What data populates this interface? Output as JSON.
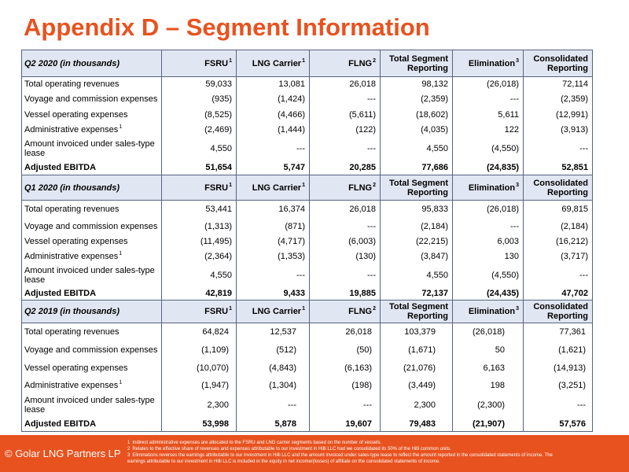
{
  "slide": {
    "title": "Appendix D – Segment Information"
  },
  "colors": {
    "accent": "#E8521F",
    "header_row_fill": "#E1E7F2",
    "table_lines": "#56647F",
    "footer_text": "#FFFFFF"
  },
  "table": {
    "columns": [
      {
        "label": "FSRU",
        "sup": "1"
      },
      {
        "label": "LNG Carrier",
        "sup": "1"
      },
      {
        "label": "FLNG",
        "sup": "2"
      },
      {
        "label": "Total Segment Reporting"
      },
      {
        "label": "Elimination",
        "sup": "3"
      },
      {
        "label": "Consolidated Reporting"
      }
    ],
    "sections": [
      {
        "period": "Q2 2020 (in thousands)",
        "rows": [
          {
            "label": "Total operating revenues",
            "values": [
              "59,033",
              "13,081",
              "26,018",
              "98,132",
              "(26,018)",
              "72,114"
            ]
          },
          {
            "label": "Voyage and commission expenses",
            "values": [
              "(935)",
              "(1,424)",
              "---",
              "(2,359)",
              "---",
              "(2,359)"
            ]
          },
          {
            "label": "Vessel operating expenses",
            "values": [
              "(8,525)",
              "(4,466)",
              "(5,611)",
              "(18,602)",
              "5,611",
              "(12,991)"
            ]
          },
          {
            "label": "Administrative expenses",
            "sup": "1",
            "values": [
              "(2,469)",
              "(1,444)",
              "(122)",
              "(4,035)",
              "122",
              "(3,913)"
            ]
          },
          {
            "label": "Amount invoiced under sales-type lease",
            "values": [
              "4,550",
              "---",
              "---",
              "4,550",
              "(4,550)",
              "---"
            ]
          },
          {
            "label": "Adjusted EBITDA",
            "values": [
              "51,654",
              "5,747",
              "20,285",
              "77,686",
              "(24,835)",
              "52,851"
            ]
          }
        ]
      },
      {
        "period": "Q1 2020 (in thousands)",
        "rows": [
          {
            "label": "Total operating revenues",
            "values": [
              "53,441",
              "16,374",
              "26,018",
              "95,833",
              "(26,018)",
              "69,815"
            ]
          },
          {
            "label": "Voyage and commission expenses",
            "values": [
              "(1,313)",
              "(871)",
              "---",
              "(2,184)",
              "---",
              "(2,184)"
            ]
          },
          {
            "label": "Vessel operating expenses",
            "values": [
              "(11,495)",
              "(4,717)",
              "(6,003)",
              "(22,215)",
              "6,003",
              "(16,212)"
            ]
          },
          {
            "label": "Administrative expenses",
            "sup": "1",
            "values": [
              "(2,364)",
              "(1,353)",
              "(130)",
              "(3,847)",
              "130",
              "(3,717)"
            ]
          },
          {
            "label": "Amount invoiced under sales-type lease",
            "values": [
              "4,550",
              "---",
              "---",
              "4,550",
              "(4,550)",
              "---"
            ]
          },
          {
            "label": "Adjusted EBITDA",
            "values": [
              "42,819",
              "9,433",
              "19,885",
              "72,137",
              "(24,435)",
              "47,702"
            ]
          }
        ]
      },
      {
        "period": "Q2 2019 (in thousands)",
        "rows": [
          {
            "label": "Total operating revenues",
            "values": [
              "64,824",
              "12,537",
              "26,018",
              "103,379",
              "(26,018)",
              "77,361"
            ]
          },
          {
            "label": "Voyage and commission expenses",
            "values": [
              "(1,109)",
              "(512)",
              "(50)",
              "(1,671)",
              "50",
              "(1,621)"
            ]
          },
          {
            "label": "Vessel operating expenses",
            "values": [
              "(10,070)",
              "(4,843)",
              "(6,163)",
              "(21,076)",
              "6,163",
              "(14,913)"
            ]
          },
          {
            "label": "Administrative expenses",
            "sup": "1",
            "values": [
              "(1,947)",
              "(1,304)",
              "(198)",
              "(3,449)",
              "198",
              "(3,251)"
            ]
          },
          {
            "label": "Amount invoiced under sales-type lease",
            "values": [
              "2,300",
              "---",
              "---",
              "2,300",
              "(2,300)",
              "---"
            ]
          },
          {
            "label": "Adjusted EBITDA",
            "values": [
              "53,998",
              "5,878",
              "19,607",
              "79,483",
              "(21,907)",
              "57,576"
            ]
          }
        ]
      }
    ]
  },
  "footer": {
    "copyright": "© Golar LNG Partners LP",
    "footnotes": [
      {
        "number": "1",
        "text": "Indirect administrative expenses are allocated to the FSRU and LNG carrier segments based on the number of vessels."
      },
      {
        "number": "2",
        "text": "Relates to the effective share of revenues and expenses attributable to our investment in Hilli LLC had we consolidated its 50% of the Hilli common units."
      },
      {
        "number": "3",
        "text": "Eliminations reverses the earnings attributable to our investment in Hilli LLC and the amount invoiced under sales-type lease to reflect the amount reported in the consolidated statements of income. The earnings attributable to our investment in Hilli LLC is included in the equity in net income/(losses) of affiliate on the consolidated statements of income."
      }
    ]
  }
}
